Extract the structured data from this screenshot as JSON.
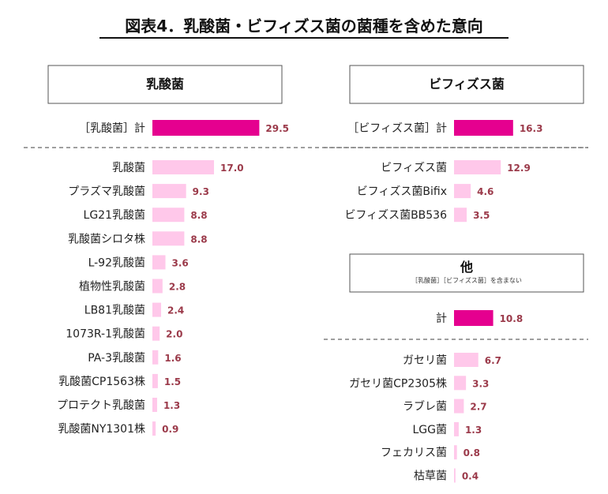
{
  "title": "図表4．乳酸菌・ビフィズス菌の菌種を含めた意向",
  "colors": {
    "total_bar": "#e5008f",
    "item_bar": "#ffc8ea",
    "value_text": "#9b3a4a",
    "title_underline": "#111111"
  },
  "chart_data": [
    {
      "type": "bar",
      "orientation": "horizontal",
      "panel_title": "乳酸菌",
      "total": {
        "label": "［乳酸菌］計",
        "value": 29.5
      },
      "categories": [
        "乳酸菌",
        "プラズマ乳酸菌",
        "LG21乳酸菌",
        "乳酸菌シロタ株",
        "L-92乳酸菌",
        "植物性乳酸菌",
        "LB81乳酸菌",
        "1073R-1乳酸菌",
        "PA-3乳酸菌",
        "乳酸菌CP1563株",
        "プロテクト乳酸菌",
        "乳酸菌NY1301株"
      ],
      "values": [
        17.0,
        9.3,
        8.8,
        8.8,
        3.6,
        2.8,
        2.4,
        2.0,
        1.6,
        1.5,
        1.3,
        0.9
      ],
      "value_labels": [
        "17.0",
        "9.3",
        "8.8",
        "8.8",
        "3.6",
        "2.8",
        "2.4",
        "2.0",
        "1.6",
        "1.5",
        "1.3",
        "0.9"
      ],
      "total_label_text": "29.5"
    },
    {
      "type": "bar",
      "orientation": "horizontal",
      "panel_title": "ビフィズス菌",
      "total": {
        "label": "［ビフィズス菌］計",
        "value": 16.3
      },
      "categories": [
        "ビフィズス菌",
        "ビフィズス菌Bifix",
        "ビフィズス菌BB536"
      ],
      "values": [
        12.9,
        4.6,
        3.5
      ],
      "value_labels": [
        "12.9",
        "4.6",
        "3.5"
      ],
      "total_label_text": "16.3"
    },
    {
      "type": "bar",
      "orientation": "horizontal",
      "panel_title": "他",
      "panel_note": "［乳酸菌］［ビフィズス菌］を含まない",
      "total": {
        "label": "計",
        "value": 10.8
      },
      "categories": [
        "ガセリ菌",
        "ガセリ菌CP2305株",
        "ラブレ菌",
        "LGG菌",
        "フェカリス菌",
        "枯草菌"
      ],
      "values": [
        6.7,
        3.3,
        2.7,
        1.3,
        0.8,
        0.4
      ],
      "value_labels": [
        "6.7",
        "3.3",
        "2.7",
        "1.3",
        "0.8",
        "0.4"
      ],
      "total_label_text": "10.8"
    }
  ]
}
